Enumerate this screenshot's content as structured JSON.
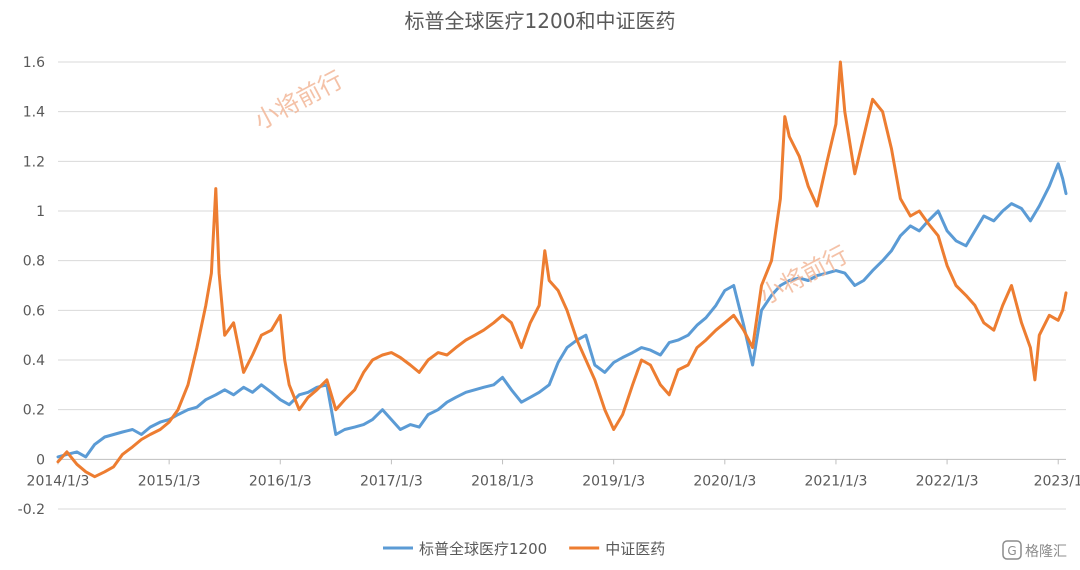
{
  "chart_data": {
    "type": "line",
    "title": "标普全球医疗1200和中证医药",
    "ylim": [
      -0.2,
      1.6
    ],
    "y_ticks": [
      1.6,
      1.4,
      1.2,
      1,
      0.8,
      0.6,
      0.4,
      0.2,
      0,
      -0.2
    ],
    "y_tick_labels": [
      "1.6",
      "1.4",
      "1.2",
      "1",
      "0.8",
      "0.6",
      "0.4",
      "0.2",
      "0",
      "-0.2"
    ],
    "x_range": [
      2014.0,
      2023.07
    ],
    "x_ticks": [
      2014,
      2015,
      2016,
      2017,
      2018,
      2019,
      2020,
      2021,
      2022,
      2023
    ],
    "x_tick_labels": [
      "2014/1/3",
      "2015/1/3",
      "2016/1/3",
      "2017/1/3",
      "2018/1/3",
      "2019/1/3",
      "2020/1/3",
      "2021/1/3",
      "2022/1/3",
      "2023/1"
    ],
    "grid": "horizontal",
    "legend_position": "bottom",
    "series": [
      {
        "name": "标普全球医疗1200",
        "color": "#5b9bd5",
        "points": [
          [
            2014.0,
            0.01
          ],
          [
            2014.08,
            0.02
          ],
          [
            2014.17,
            0.03
          ],
          [
            2014.25,
            0.01
          ],
          [
            2014.33,
            0.06
          ],
          [
            2014.42,
            0.09
          ],
          [
            2014.5,
            0.1
          ],
          [
            2014.58,
            0.11
          ],
          [
            2014.67,
            0.12
          ],
          [
            2014.75,
            0.1
          ],
          [
            2014.83,
            0.13
          ],
          [
            2014.92,
            0.15
          ],
          [
            2015.0,
            0.16
          ],
          [
            2015.08,
            0.18
          ],
          [
            2015.17,
            0.2
          ],
          [
            2015.25,
            0.21
          ],
          [
            2015.33,
            0.24
          ],
          [
            2015.42,
            0.26
          ],
          [
            2015.5,
            0.28
          ],
          [
            2015.58,
            0.26
          ],
          [
            2015.67,
            0.29
          ],
          [
            2015.75,
            0.27
          ],
          [
            2015.83,
            0.3
          ],
          [
            2015.92,
            0.27
          ],
          [
            2016.0,
            0.24
          ],
          [
            2016.08,
            0.22
          ],
          [
            2016.17,
            0.26
          ],
          [
            2016.25,
            0.27
          ],
          [
            2016.33,
            0.29
          ],
          [
            2016.42,
            0.3
          ],
          [
            2016.5,
            0.1
          ],
          [
            2016.58,
            0.12
          ],
          [
            2016.67,
            0.13
          ],
          [
            2016.75,
            0.14
          ],
          [
            2016.83,
            0.16
          ],
          [
            2016.92,
            0.2
          ],
          [
            2017.0,
            0.16
          ],
          [
            2017.08,
            0.12
          ],
          [
            2017.17,
            0.14
          ],
          [
            2017.25,
            0.13
          ],
          [
            2017.33,
            0.18
          ],
          [
            2017.42,
            0.2
          ],
          [
            2017.5,
            0.23
          ],
          [
            2017.58,
            0.25
          ],
          [
            2017.67,
            0.27
          ],
          [
            2017.75,
            0.28
          ],
          [
            2017.83,
            0.29
          ],
          [
            2017.92,
            0.3
          ],
          [
            2018.0,
            0.33
          ],
          [
            2018.08,
            0.28
          ],
          [
            2018.17,
            0.23
          ],
          [
            2018.25,
            0.25
          ],
          [
            2018.33,
            0.27
          ],
          [
            2018.42,
            0.3
          ],
          [
            2018.5,
            0.39
          ],
          [
            2018.58,
            0.45
          ],
          [
            2018.67,
            0.48
          ],
          [
            2018.75,
            0.5
          ],
          [
            2018.83,
            0.38
          ],
          [
            2018.92,
            0.35
          ],
          [
            2019.0,
            0.39
          ],
          [
            2019.08,
            0.41
          ],
          [
            2019.17,
            0.43
          ],
          [
            2019.25,
            0.45
          ],
          [
            2019.33,
            0.44
          ],
          [
            2019.42,
            0.42
          ],
          [
            2019.5,
            0.47
          ],
          [
            2019.58,
            0.48
          ],
          [
            2019.67,
            0.5
          ],
          [
            2019.75,
            0.54
          ],
          [
            2019.83,
            0.57
          ],
          [
            2019.92,
            0.62
          ],
          [
            2020.0,
            0.68
          ],
          [
            2020.08,
            0.7
          ],
          [
            2020.17,
            0.54
          ],
          [
            2020.25,
            0.38
          ],
          [
            2020.33,
            0.6
          ],
          [
            2020.42,
            0.66
          ],
          [
            2020.5,
            0.7
          ],
          [
            2020.58,
            0.72
          ],
          [
            2020.67,
            0.73
          ],
          [
            2020.75,
            0.72
          ],
          [
            2020.83,
            0.74
          ],
          [
            2020.92,
            0.75
          ],
          [
            2021.0,
            0.76
          ],
          [
            2021.08,
            0.75
          ],
          [
            2021.17,
            0.7
          ],
          [
            2021.25,
            0.72
          ],
          [
            2021.33,
            0.76
          ],
          [
            2021.42,
            0.8
          ],
          [
            2021.5,
            0.84
          ],
          [
            2021.58,
            0.9
          ],
          [
            2021.67,
            0.94
          ],
          [
            2021.75,
            0.92
          ],
          [
            2021.83,
            0.96
          ],
          [
            2021.92,
            1.0
          ],
          [
            2022.0,
            0.92
          ],
          [
            2022.08,
            0.88
          ],
          [
            2022.17,
            0.86
          ],
          [
            2022.25,
            0.92
          ],
          [
            2022.33,
            0.98
          ],
          [
            2022.42,
            0.96
          ],
          [
            2022.5,
            1.0
          ],
          [
            2022.58,
            1.03
          ],
          [
            2022.67,
            1.01
          ],
          [
            2022.75,
            0.96
          ],
          [
            2022.83,
            1.02
          ],
          [
            2022.92,
            1.1
          ],
          [
            2023.0,
            1.19
          ],
          [
            2023.04,
            1.13
          ],
          [
            2023.07,
            1.07
          ]
        ]
      },
      {
        "name": "中证医药",
        "color": "#ed7d31",
        "points": [
          [
            2014.0,
            -0.01
          ],
          [
            2014.08,
            0.03
          ],
          [
            2014.17,
            -0.02
          ],
          [
            2014.25,
            -0.05
          ],
          [
            2014.33,
            -0.07
          ],
          [
            2014.42,
            -0.05
          ],
          [
            2014.5,
            -0.03
          ],
          [
            2014.58,
            0.02
          ],
          [
            2014.67,
            0.05
          ],
          [
            2014.75,
            0.08
          ],
          [
            2014.83,
            0.1
          ],
          [
            2014.92,
            0.12
          ],
          [
            2015.0,
            0.15
          ],
          [
            2015.08,
            0.2
          ],
          [
            2015.17,
            0.3
          ],
          [
            2015.25,
            0.45
          ],
          [
            2015.33,
            0.62
          ],
          [
            2015.38,
            0.75
          ],
          [
            2015.42,
            1.09
          ],
          [
            2015.45,
            0.75
          ],
          [
            2015.5,
            0.5
          ],
          [
            2015.58,
            0.55
          ],
          [
            2015.67,
            0.35
          ],
          [
            2015.75,
            0.42
          ],
          [
            2015.83,
            0.5
          ],
          [
            2015.92,
            0.52
          ],
          [
            2016.0,
            0.58
          ],
          [
            2016.04,
            0.4
          ],
          [
            2016.08,
            0.3
          ],
          [
            2016.17,
            0.2
          ],
          [
            2016.25,
            0.25
          ],
          [
            2016.33,
            0.28
          ],
          [
            2016.42,
            0.32
          ],
          [
            2016.5,
            0.2
          ],
          [
            2016.58,
            0.24
          ],
          [
            2016.67,
            0.28
          ],
          [
            2016.75,
            0.35
          ],
          [
            2016.83,
            0.4
          ],
          [
            2016.92,
            0.42
          ],
          [
            2017.0,
            0.43
          ],
          [
            2017.08,
            0.41
          ],
          [
            2017.17,
            0.38
          ],
          [
            2017.25,
            0.35
          ],
          [
            2017.33,
            0.4
          ],
          [
            2017.42,
            0.43
          ],
          [
            2017.5,
            0.42
          ],
          [
            2017.58,
            0.45
          ],
          [
            2017.67,
            0.48
          ],
          [
            2017.75,
            0.5
          ],
          [
            2017.83,
            0.52
          ],
          [
            2017.92,
            0.55
          ],
          [
            2018.0,
            0.58
          ],
          [
            2018.08,
            0.55
          ],
          [
            2018.17,
            0.45
          ],
          [
            2018.25,
            0.55
          ],
          [
            2018.33,
            0.62
          ],
          [
            2018.38,
            0.84
          ],
          [
            2018.42,
            0.72
          ],
          [
            2018.5,
            0.68
          ],
          [
            2018.58,
            0.6
          ],
          [
            2018.67,
            0.48
          ],
          [
            2018.75,
            0.4
          ],
          [
            2018.83,
            0.32
          ],
          [
            2018.92,
            0.2
          ],
          [
            2019.0,
            0.12
          ],
          [
            2019.08,
            0.18
          ],
          [
            2019.17,
            0.3
          ],
          [
            2019.25,
            0.4
          ],
          [
            2019.33,
            0.38
          ],
          [
            2019.42,
            0.3
          ],
          [
            2019.5,
            0.26
          ],
          [
            2019.58,
            0.36
          ],
          [
            2019.67,
            0.38
          ],
          [
            2019.75,
            0.45
          ],
          [
            2019.83,
            0.48
          ],
          [
            2019.92,
            0.52
          ],
          [
            2020.0,
            0.55
          ],
          [
            2020.08,
            0.58
          ],
          [
            2020.17,
            0.52
          ],
          [
            2020.25,
            0.45
          ],
          [
            2020.33,
            0.7
          ],
          [
            2020.42,
            0.8
          ],
          [
            2020.5,
            1.05
          ],
          [
            2020.54,
            1.38
          ],
          [
            2020.58,
            1.3
          ],
          [
            2020.67,
            1.22
          ],
          [
            2020.75,
            1.1
          ],
          [
            2020.83,
            1.02
          ],
          [
            2020.92,
            1.2
          ],
          [
            2021.0,
            1.35
          ],
          [
            2021.04,
            1.6
          ],
          [
            2021.08,
            1.4
          ],
          [
            2021.17,
            1.15
          ],
          [
            2021.25,
            1.3
          ],
          [
            2021.33,
            1.45
          ],
          [
            2021.42,
            1.4
          ],
          [
            2021.5,
            1.25
          ],
          [
            2021.58,
            1.05
          ],
          [
            2021.67,
            0.98
          ],
          [
            2021.75,
            1.0
          ],
          [
            2021.83,
            0.95
          ],
          [
            2021.92,
            0.9
          ],
          [
            2022.0,
            0.78
          ],
          [
            2022.08,
            0.7
          ],
          [
            2022.17,
            0.66
          ],
          [
            2022.25,
            0.62
          ],
          [
            2022.33,
            0.55
          ],
          [
            2022.42,
            0.52
          ],
          [
            2022.5,
            0.62
          ],
          [
            2022.58,
            0.7
          ],
          [
            2022.67,
            0.55
          ],
          [
            2022.75,
            0.45
          ],
          [
            2022.79,
            0.32
          ],
          [
            2022.83,
            0.5
          ],
          [
            2022.92,
            0.58
          ],
          [
            2023.0,
            0.56
          ],
          [
            2023.04,
            0.6
          ],
          [
            2023.07,
            0.67
          ]
        ]
      }
    ]
  },
  "watermark_text": "小将前行",
  "logo": {
    "text": "格隆汇"
  }
}
